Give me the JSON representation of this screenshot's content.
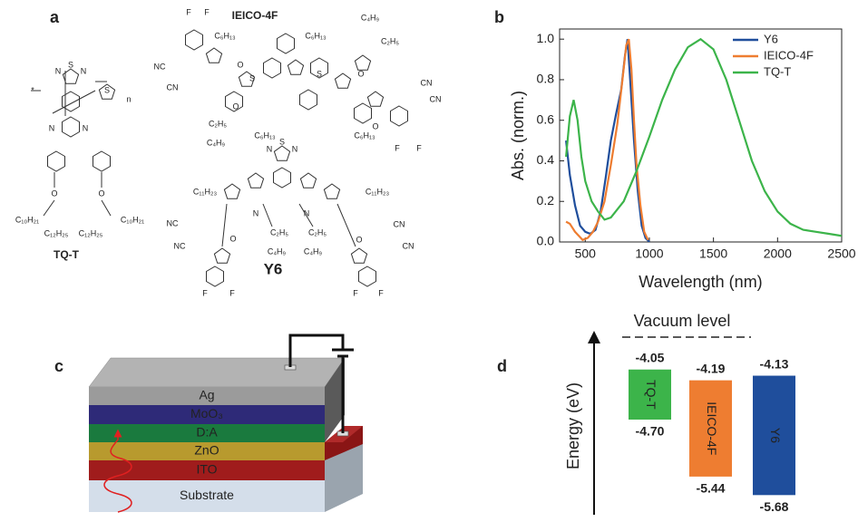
{
  "panel_labels": [
    "a",
    "b",
    "c",
    "d"
  ],
  "molecules": [
    {
      "name": "IEICO-4F",
      "atoms": [
        "F",
        "F",
        "C₆H₁₃",
        "C₆H₁₃",
        "C₄H₉",
        "C₂H₅",
        "O",
        "NC",
        "CN",
        "S",
        "S",
        "O",
        "O",
        "C₂H₅",
        "C₄H₉",
        "C₆H₁₃",
        "C₆H₁₃",
        "O",
        "CN",
        "CN",
        "F",
        "F"
      ]
    },
    {
      "name": "TQ-T",
      "atoms": [
        "*",
        "N",
        "S",
        "N",
        "S",
        "n",
        "N",
        "N",
        "O",
        "O",
        "C₁₀H₂₁",
        "C₁₂H₂₅",
        "C₁₂H₂₅",
        "C₁₀H₂₁"
      ]
    },
    {
      "name": "Y6",
      "atoms": [
        "N",
        "S",
        "N",
        "C₁₁H₂₃",
        "C₁₁H₂₃",
        "N",
        "N",
        "NC",
        "NC",
        "O",
        "C₂H₅",
        "C₄H₉",
        "C₂H₅",
        "C₄H₉",
        "O",
        "CN",
        "CN",
        "F",
        "F",
        "F",
        "F"
      ]
    }
  ],
  "device": {
    "layers": [
      "Ag",
      "MoO₃",
      "D:A",
      "ZnO",
      "ITO",
      "Substrate"
    ]
  },
  "chart_data": [
    {
      "type": "line",
      "xlabel": "Wavelength (nm)",
      "ylabel": "Abs. (norm.)",
      "xlim": [
        300,
        2500
      ],
      "ylim": [
        0,
        1.05
      ],
      "xticks": [
        500,
        1000,
        1500,
        2000,
        2500
      ],
      "yticks": [
        {
          "value": 0,
          "label": "0.0"
        },
        0.2,
        0.4,
        0.6,
        0.8,
        {
          "value": 1,
          "label": "1.0"
        }
      ],
      "legend": "upper right",
      "series": [
        {
          "name": "Y6",
          "color": "#1f4e9c",
          "x": [
            350,
            380,
            420,
            460,
            500,
            540,
            580,
            620,
            660,
            700,
            740,
            780,
            810,
            830,
            850,
            880,
            910,
            940,
            970,
            1000
          ],
          "values": [
            0.5,
            0.33,
            0.18,
            0.08,
            0.05,
            0.04,
            0.06,
            0.15,
            0.32,
            0.5,
            0.63,
            0.75,
            0.92,
            1.0,
            0.8,
            0.5,
            0.25,
            0.08,
            0.02,
            0
          ]
        },
        {
          "name": "IEICO-4F",
          "color": "#ee7d31",
          "x": [
            350,
            380,
            420,
            450,
            480,
            520,
            560,
            600,
            650,
            700,
            750,
            790,
            820,
            840,
            860,
            880,
            900,
            930,
            960,
            990
          ],
          "values": [
            0.1,
            0.09,
            0.05,
            0.03,
            0.01,
            0.02,
            0.05,
            0.1,
            0.2,
            0.38,
            0.58,
            0.8,
            0.97,
            1.0,
            0.85,
            0.6,
            0.38,
            0.18,
            0.05,
            0.01
          ]
        },
        {
          "name": "TQ-T",
          "color": "#3cb44a",
          "x": [
            350,
            380,
            410,
            440,
            470,
            500,
            550,
            600,
            650,
            700,
            800,
            900,
            1000,
            1100,
            1200,
            1300,
            1400,
            1500,
            1600,
            1700,
            1800,
            1900,
            2000,
            2100,
            2200,
            2300,
            2400,
            2500
          ],
          "values": [
            0.42,
            0.62,
            0.7,
            0.6,
            0.42,
            0.3,
            0.2,
            0.15,
            0.11,
            0.12,
            0.2,
            0.35,
            0.52,
            0.7,
            0.85,
            0.96,
            1.0,
            0.95,
            0.8,
            0.6,
            0.4,
            0.25,
            0.15,
            0.09,
            0.06,
            0.05,
            0.04,
            0.03
          ]
        }
      ]
    },
    {
      "type": "energy-level",
      "ylabel": "Energy (eV)",
      "annotation": "Vacuum level",
      "ylim": [
        -5.9,
        -3.7
      ],
      "series": [
        {
          "name": "TQ-T",
          "color": "#3cb44a",
          "lumo": -4.05,
          "homo": {
            "value": -4.7,
            "label": "-4.70"
          }
        },
        {
          "name": "IEICO-4F",
          "color": "#ee7d31",
          "lumo": -4.19,
          "homo": -5.44
        },
        {
          "name": "Y6",
          "color": "#1f4e9c",
          "lumo": -4.13,
          "homo": -5.68
        }
      ]
    }
  ]
}
